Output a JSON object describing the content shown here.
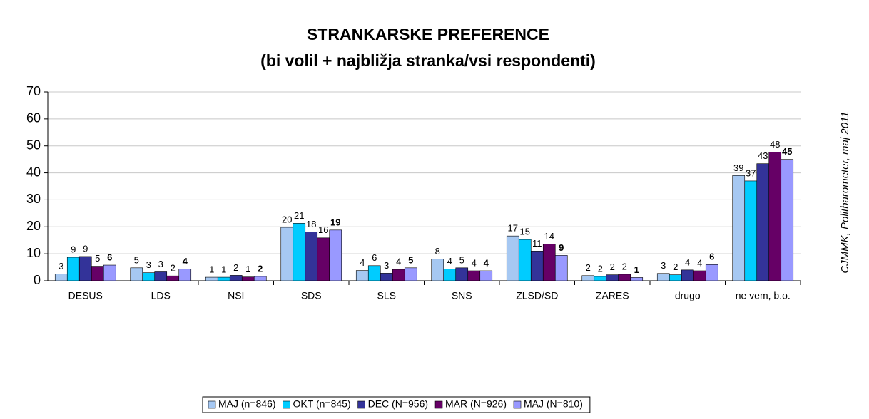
{
  "chart_data": {
    "type": "bar",
    "title": "STRANKARSKE PREFERENCE",
    "subtitle": "(bi volil + najbližja stranka/vsi respondenti)",
    "annotation": "CJMMK, Politbarometer, maj 2011",
    "categories": [
      "DESUS",
      "LDS",
      "NSI",
      "SDS",
      "SLS",
      "SNS",
      "ZLSD/SD",
      "ZARES",
      "drugo",
      "ne vem, b.o."
    ],
    "series": [
      {
        "name": "MAJ (n=846)",
        "color": "#a6c8f2",
        "values": [
          2.5,
          4.8,
          1.3,
          19.8,
          3.8,
          8.0,
          16.6,
          1.9,
          2.7,
          39.0
        ],
        "value_labels": [
          "3",
          "5",
          "1",
          "20",
          "4",
          "8",
          "17",
          "2",
          "3",
          "39"
        ]
      },
      {
        "name": "OKT (n=845)",
        "color": "#00ccff",
        "values": [
          8.7,
          3.0,
          1.3,
          21.3,
          5.6,
          4.3,
          15.3,
          1.6,
          2.2,
          37.0
        ],
        "value_labels": [
          "9",
          "3",
          "1",
          "21",
          "6",
          "4",
          "15",
          "2",
          "2",
          "37"
        ]
      },
      {
        "name": "DEC (N=956)",
        "color": "#333399",
        "values": [
          9.0,
          3.3,
          2.0,
          18.1,
          2.8,
          4.8,
          11.0,
          2.2,
          4.0,
          43.4
        ],
        "value_labels": [
          "9",
          "3",
          "2",
          "18",
          "3",
          "5",
          "11",
          "2",
          "4",
          "43"
        ]
      },
      {
        "name": "MAR (N=926)",
        "color": "#660066",
        "values": [
          5.4,
          1.8,
          1.4,
          15.9,
          4.2,
          3.7,
          13.6,
          2.4,
          3.7,
          47.7
        ],
        "value_labels": [
          "5",
          "2",
          "1",
          "16",
          "4",
          "4",
          "14",
          "2",
          "4",
          "48"
        ]
      },
      {
        "name": "MAJ (N=810)",
        "color": "#9999ff",
        "values": [
          5.8,
          4.3,
          1.6,
          18.8,
          4.8,
          3.7,
          9.4,
          1.2,
          6.0,
          45.0
        ],
        "value_labels": [
          "6",
          "4",
          "2",
          "19",
          "5",
          "4",
          "9",
          "1",
          "6",
          "45"
        ]
      }
    ],
    "ylim": [
      0,
      70
    ],
    "yticks": [
      0,
      10,
      20,
      30,
      40,
      50,
      60,
      70
    ],
    "grid": true,
    "legend": "bottom"
  }
}
